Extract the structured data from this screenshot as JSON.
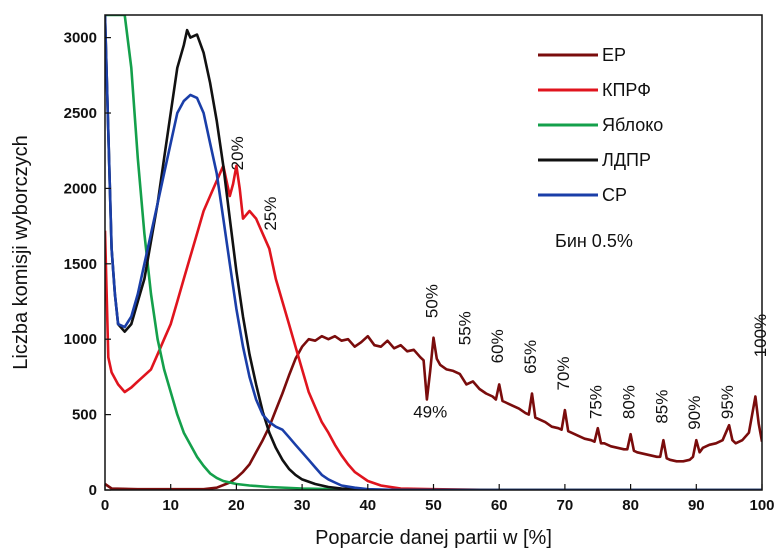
{
  "chart_data": {
    "type": "line",
    "xlabel": "Poparcie danej partii w [%]",
    "ylabel": "Liczba komisji wyborczych",
    "xlim": [
      0,
      100
    ],
    "ylim": [
      0,
      3150
    ],
    "x_ticks": [
      0,
      10,
      20,
      30,
      40,
      50,
      60,
      70,
      80,
      90,
      100
    ],
    "y_ticks": [
      0,
      500,
      1000,
      1500,
      2000,
      2500,
      3000
    ],
    "grid": false,
    "legend_position": "top-right",
    "bin_note": "Бин 0.5%",
    "series": [
      {
        "name": "ЕР",
        "color": "#7a0c0c",
        "points": [
          [
            0,
            40
          ],
          [
            1,
            10
          ],
          [
            5,
            5
          ],
          [
            10,
            5
          ],
          [
            15,
            5
          ],
          [
            17,
            15
          ],
          [
            19,
            50
          ],
          [
            20,
            80
          ],
          [
            21,
            120
          ],
          [
            22,
            170
          ],
          [
            23,
            250
          ],
          [
            24,
            330
          ],
          [
            25,
            420
          ],
          [
            26,
            530
          ],
          [
            27,
            640
          ],
          [
            28,
            760
          ],
          [
            29,
            870
          ],
          [
            30,
            950
          ],
          [
            31,
            1000
          ],
          [
            32,
            990
          ],
          [
            33,
            1020
          ],
          [
            34,
            1000
          ],
          [
            35,
            1020
          ],
          [
            36,
            990
          ],
          [
            37,
            1000
          ],
          [
            38,
            950
          ],
          [
            39,
            980
          ],
          [
            40,
            1020
          ],
          [
            41,
            960
          ],
          [
            42,
            950
          ],
          [
            43,
            990
          ],
          [
            44,
            940
          ],
          [
            45,
            960
          ],
          [
            46,
            920
          ],
          [
            47,
            930
          ],
          [
            48,
            880
          ],
          [
            48.5,
            860
          ],
          [
            49,
            600
          ],
          [
            49.5,
            790
          ],
          [
            50,
            1010
          ],
          [
            50.5,
            870
          ],
          [
            51,
            830
          ],
          [
            52,
            800
          ],
          [
            53,
            790
          ],
          [
            54,
            770
          ],
          [
            55,
            700
          ],
          [
            56,
            720
          ],
          [
            57,
            670
          ],
          [
            58,
            640
          ],
          [
            59,
            620
          ],
          [
            59.5,
            600
          ],
          [
            60,
            700
          ],
          [
            60.5,
            590
          ],
          [
            61,
            580
          ],
          [
            62,
            560
          ],
          [
            63,
            540
          ],
          [
            64,
            510
          ],
          [
            64.5,
            500
          ],
          [
            65,
            640
          ],
          [
            65.5,
            480
          ],
          [
            66,
            470
          ],
          [
            67,
            450
          ],
          [
            68,
            420
          ],
          [
            69,
            410
          ],
          [
            69.5,
            400
          ],
          [
            70,
            530
          ],
          [
            70.5,
            390
          ],
          [
            71,
            380
          ],
          [
            72,
            360
          ],
          [
            73,
            340
          ],
          [
            74,
            330
          ],
          [
            74.5,
            320
          ],
          [
            75,
            410
          ],
          [
            75.5,
            310
          ],
          [
            76,
            310
          ],
          [
            77,
            290
          ],
          [
            78,
            280
          ],
          [
            79,
            270
          ],
          [
            79.5,
            270
          ],
          [
            80,
            370
          ],
          [
            80.5,
            260
          ],
          [
            81,
            250
          ],
          [
            82,
            240
          ],
          [
            83,
            230
          ],
          [
            84,
            220
          ],
          [
            84.5,
            220
          ],
          [
            85,
            330
          ],
          [
            85.5,
            210
          ],
          [
            86,
            200
          ],
          [
            87,
            190
          ],
          [
            88,
            190
          ],
          [
            89,
            200
          ],
          [
            89.5,
            220
          ],
          [
            90,
            330
          ],
          [
            90.5,
            250
          ],
          [
            91,
            280
          ],
          [
            92,
            300
          ],
          [
            93,
            310
          ],
          [
            94,
            330
          ],
          [
            95,
            430
          ],
          [
            95.5,
            330
          ],
          [
            96,
            310
          ],
          [
            97,
            330
          ],
          [
            98,
            380
          ],
          [
            99,
            620
          ],
          [
            99.5,
            440
          ],
          [
            100,
            320
          ]
        ]
      },
      {
        "name": "КПРФ",
        "color": "#e0141e",
        "points": [
          [
            0,
            1720
          ],
          [
            0.5,
            880
          ],
          [
            1,
            780
          ],
          [
            2,
            700
          ],
          [
            3,
            650
          ],
          [
            4,
            680
          ],
          [
            5,
            720
          ],
          [
            6,
            760
          ],
          [
            7,
            800
          ],
          [
            8,
            900
          ],
          [
            9,
            1000
          ],
          [
            10,
            1100
          ],
          [
            11,
            1250
          ],
          [
            12,
            1400
          ],
          [
            13,
            1550
          ],
          [
            14,
            1700
          ],
          [
            15,
            1850
          ],
          [
            16,
            1950
          ],
          [
            17,
            2050
          ],
          [
            18,
            2150
          ],
          [
            18.5,
            2050
          ],
          [
            19,
            1950
          ],
          [
            19.5,
            2030
          ],
          [
            20,
            2150
          ],
          [
            20.5,
            2000
          ],
          [
            21,
            1800
          ],
          [
            22,
            1850
          ],
          [
            23,
            1800
          ],
          [
            24,
            1700
          ],
          [
            25,
            1600
          ],
          [
            26,
            1400
          ],
          [
            27,
            1250
          ],
          [
            28,
            1100
          ],
          [
            29,
            950
          ],
          [
            30,
            800
          ],
          [
            31,
            650
          ],
          [
            32,
            550
          ],
          [
            33,
            450
          ],
          [
            34,
            380
          ],
          [
            35,
            300
          ],
          [
            36,
            230
          ],
          [
            37,
            170
          ],
          [
            38,
            120
          ],
          [
            39,
            90
          ],
          [
            40,
            60
          ],
          [
            42,
            30
          ],
          [
            45,
            10
          ],
          [
            50,
            5
          ],
          [
            60,
            0
          ],
          [
            100,
            0
          ]
        ]
      },
      {
        "name": "Яблоко",
        "color": "#14a04b",
        "points": [
          [
            0,
            3150
          ],
          [
            3,
            3150
          ],
          [
            4,
            2800
          ],
          [
            5,
            2200
          ],
          [
            6,
            1700
          ],
          [
            7,
            1300
          ],
          [
            8,
            1000
          ],
          [
            9,
            800
          ],
          [
            10,
            650
          ],
          [
            11,
            500
          ],
          [
            12,
            380
          ],
          [
            13,
            300
          ],
          [
            14,
            220
          ],
          [
            15,
            160
          ],
          [
            16,
            110
          ],
          [
            17,
            80
          ],
          [
            18,
            60
          ],
          [
            20,
            40
          ],
          [
            22,
            30
          ],
          [
            25,
            20
          ],
          [
            30,
            10
          ],
          [
            35,
            5
          ],
          [
            40,
            0
          ],
          [
            100,
            0
          ]
        ]
      },
      {
        "name": "ЛДПР",
        "color": "#111111",
        "points": [
          [
            0,
            3150
          ],
          [
            1,
            1600
          ],
          [
            1.5,
            1300
          ],
          [
            2,
            1100
          ],
          [
            3,
            1050
          ],
          [
            4,
            1100
          ],
          [
            5,
            1250
          ],
          [
            6,
            1400
          ],
          [
            7,
            1650
          ],
          [
            8,
            1900
          ],
          [
            9,
            2200
          ],
          [
            10,
            2500
          ],
          [
            11,
            2800
          ],
          [
            12,
            2950
          ],
          [
            12.5,
            3050
          ],
          [
            13,
            3000
          ],
          [
            14,
            3020
          ],
          [
            15,
            2900
          ],
          [
            16,
            2700
          ],
          [
            17,
            2450
          ],
          [
            18,
            2150
          ],
          [
            19,
            1800
          ],
          [
            20,
            1450
          ],
          [
            21,
            1150
          ],
          [
            22,
            900
          ],
          [
            23,
            700
          ],
          [
            24,
            520
          ],
          [
            25,
            380
          ],
          [
            26,
            280
          ],
          [
            27,
            200
          ],
          [
            28,
            140
          ],
          [
            29,
            100
          ],
          [
            30,
            70
          ],
          [
            32,
            40
          ],
          [
            34,
            20
          ],
          [
            36,
            10
          ],
          [
            38,
            5
          ],
          [
            40,
            0
          ],
          [
            100,
            0
          ]
        ]
      },
      {
        "name": "СР",
        "color": "#1a3ea8",
        "points": [
          [
            0,
            3150
          ],
          [
            1,
            1600
          ],
          [
            1.5,
            1300
          ],
          [
            2,
            1100
          ],
          [
            3,
            1080
          ],
          [
            4,
            1150
          ],
          [
            5,
            1300
          ],
          [
            6,
            1500
          ],
          [
            7,
            1700
          ],
          [
            8,
            1900
          ],
          [
            9,
            2100
          ],
          [
            10,
            2300
          ],
          [
            11,
            2500
          ],
          [
            12,
            2580
          ],
          [
            13,
            2620
          ],
          [
            14,
            2600
          ],
          [
            15,
            2500
          ],
          [
            16,
            2300
          ],
          [
            17,
            2100
          ],
          [
            18,
            1800
          ],
          [
            19,
            1500
          ],
          [
            20,
            1200
          ],
          [
            21,
            950
          ],
          [
            22,
            750
          ],
          [
            23,
            600
          ],
          [
            24,
            500
          ],
          [
            25,
            450
          ],
          [
            26,
            420
          ],
          [
            27,
            400
          ],
          [
            28,
            350
          ],
          [
            29,
            300
          ],
          [
            30,
            250
          ],
          [
            31,
            200
          ],
          [
            32,
            150
          ],
          [
            33,
            100
          ],
          [
            34,
            70
          ],
          [
            35,
            50
          ],
          [
            36,
            30
          ],
          [
            38,
            15
          ],
          [
            40,
            5
          ],
          [
            45,
            0
          ],
          [
            100,
            0
          ]
        ]
      }
    ],
    "annotations": [
      {
        "text": "20%",
        "x": 21,
        "y": 2120,
        "rotate": -90
      },
      {
        "text": "25%",
        "x": 26,
        "y": 1720,
        "rotate": -90
      },
      {
        "text": "50%",
        "x": 50.6,
        "y": 1140,
        "rotate": -90
      },
      {
        "text": "55%",
        "x": 55.6,
        "y": 960,
        "rotate": -90
      },
      {
        "text": "60%",
        "x": 60.6,
        "y": 840,
        "rotate": -90
      },
      {
        "text": "65%",
        "x": 65.6,
        "y": 770,
        "rotate": -90
      },
      {
        "text": "70%",
        "x": 70.6,
        "y": 660,
        "rotate": -90
      },
      {
        "text": "75%",
        "x": 75.6,
        "y": 470,
        "rotate": -90
      },
      {
        "text": "80%",
        "x": 80.6,
        "y": 470,
        "rotate": -90
      },
      {
        "text": "85%",
        "x": 85.6,
        "y": 440,
        "rotate": -90
      },
      {
        "text": "90%",
        "x": 90.6,
        "y": 400,
        "rotate": -90
      },
      {
        "text": "95%",
        "x": 95.6,
        "y": 470,
        "rotate": -90
      },
      {
        "text": "100%",
        "x": 100.6,
        "y": 880,
        "rotate": -90
      },
      {
        "text": "49%",
        "x": 49.5,
        "y": 480,
        "rotate": 0
      }
    ]
  }
}
